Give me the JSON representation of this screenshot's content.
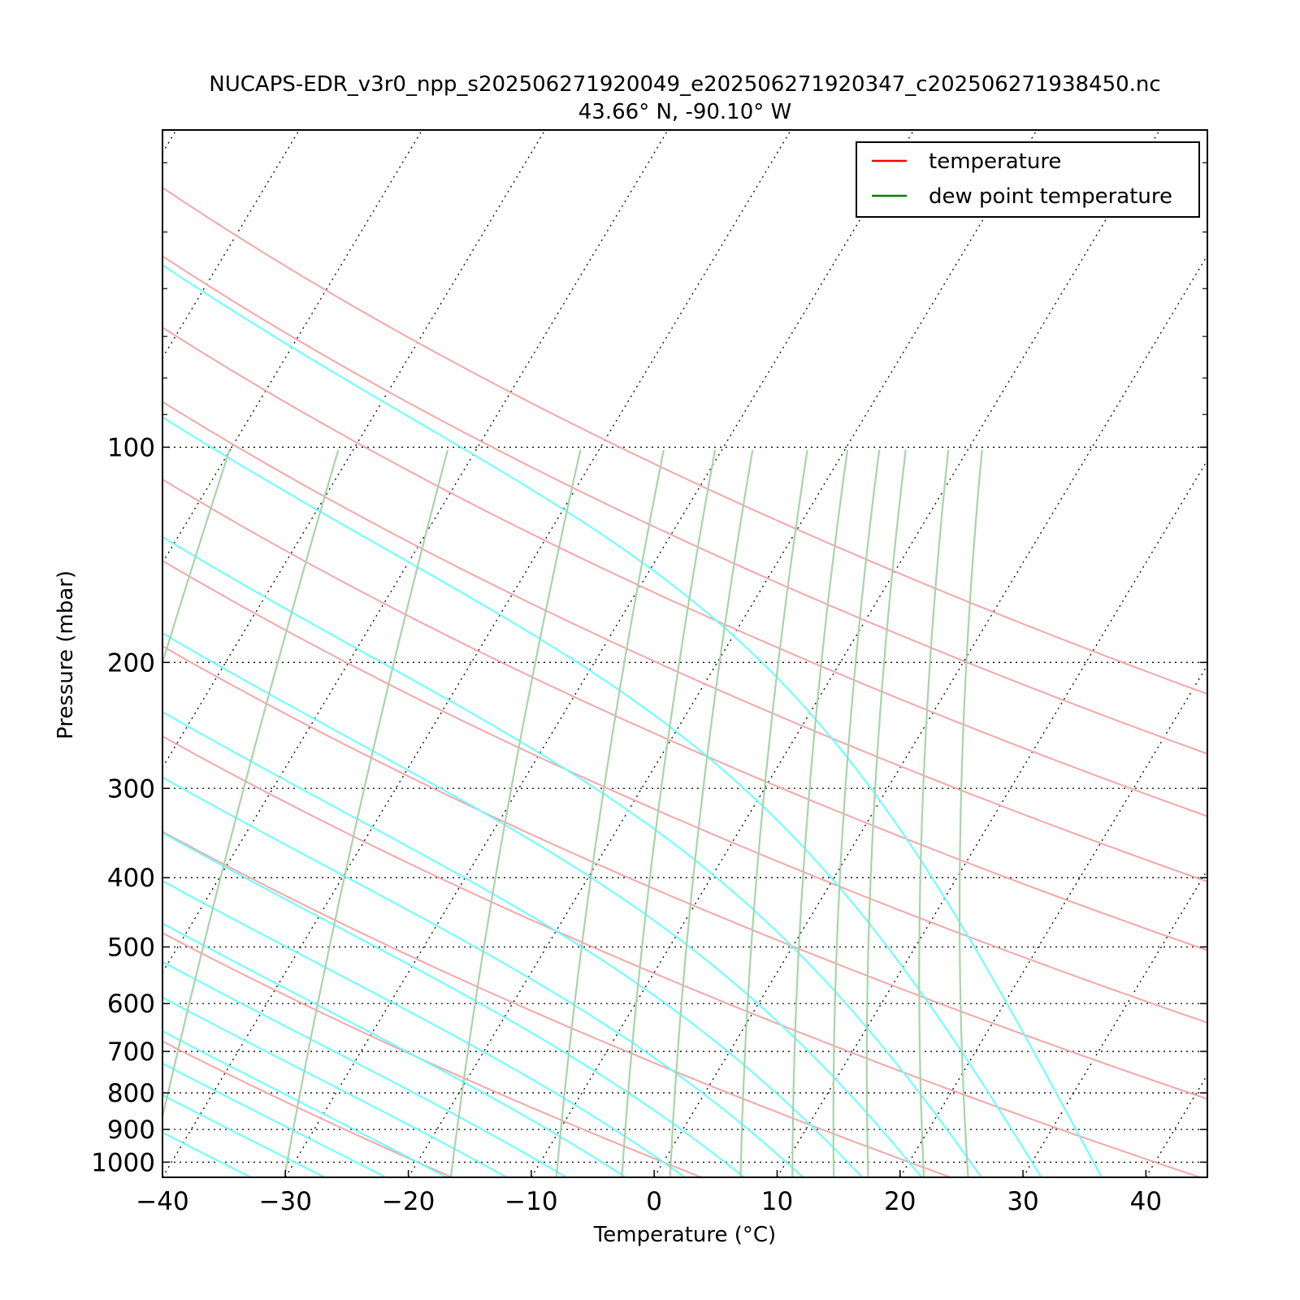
{
  "chart_data": {
    "type": "line",
    "title": "NUCAPS-EDR_v3r0_npp_s202506271920049_e202506271920347_c202506271938450.nc",
    "subtitle": "43.66$^\\circ$N, -90.10$^\\circ$W",
    "subtitle_display": "43.66° N, -90.10° W",
    "xlabel": "Temperature (°C)",
    "ylabel": "Pressure (mbar)",
    "xlim": [
      -40,
      45
    ],
    "ylim": [
      1050,
      36
    ],
    "yscale": "log",
    "skew": "skew-T log-P",
    "grid": true,
    "legend_position": "top-right",
    "x_ticks": [
      -40,
      -30,
      -20,
      -10,
      0,
      10,
      20,
      30,
      40
    ],
    "x_tick_labels": [
      "−40",
      "−30",
      "−20",
      "−10",
      "0",
      "10",
      "20",
      "30",
      "40"
    ],
    "y_ticks": [
      100,
      200,
      300,
      400,
      500,
      600,
      700,
      800,
      900,
      1000
    ],
    "y_tick_labels": [
      "100",
      "200",
      "300",
      "400",
      "500",
      "600",
      "700",
      "800",
      "900",
      "1000"
    ],
    "isotherms_C": [
      -140,
      -130,
      -120,
      -110,
      -100,
      -90,
      -80,
      -70,
      -60,
      -50,
      -40,
      -30,
      -20,
      -10,
      0,
      10,
      20,
      30,
      40
    ],
    "dry_adiabats_C": [
      -20,
      0,
      20,
      40,
      60,
      80,
      100,
      120,
      140,
      160,
      180
    ],
    "moist_adiabats_C": [
      -36,
      -30,
      -25,
      -20,
      -15,
      -10,
      -5,
      0,
      5,
      10,
      15,
      20,
      25,
      30,
      35
    ],
    "mixing_ratio_lines_gkg": [
      0.01,
      0.03,
      0.1,
      0.3,
      1,
      2,
      3,
      4,
      6,
      8,
      10,
      12,
      16,
      20
    ],
    "series": [
      {
        "name": "temperature",
        "color": "#ff0000",
        "x": [],
        "y": []
      },
      {
        "name": "dew point temperature",
        "color": "#008000",
        "x": [],
        "y": []
      }
    ],
    "colors": {
      "dry_adiabat": "#f4a7a7",
      "moist_adiabat": "#66ffff",
      "mixing_ratio": "#a8d4a8",
      "isotherm": "#000000"
    }
  }
}
